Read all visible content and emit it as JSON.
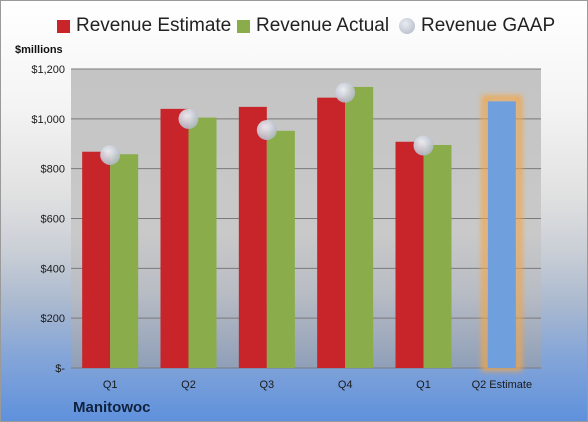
{
  "legend": {
    "estimate": "Revenue Estimate",
    "actual": "Revenue Actual",
    "gaap": "Revenue GAAP"
  },
  "company": "Manitowoc",
  "colors": {
    "estimate": "#c8252a",
    "actual": "#8aac4a",
    "gaap": "#b3b8c6",
    "projection": "#6f9fdc",
    "projection_glow": "#f2a64a"
  },
  "chart_data": {
    "type": "bar",
    "ylabel": "$millions",
    "ylim": [
      0,
      1200
    ],
    "yticks": [
      "$-",
      "$200",
      "$400",
      "$600",
      "$800",
      "$1,000",
      "$1,200"
    ],
    "ytick_values": [
      0,
      200,
      400,
      600,
      800,
      1000,
      1200
    ],
    "categories": [
      "Q1",
      "Q2",
      "Q3",
      "Q4",
      "Q1",
      "Q2 Estimate"
    ],
    "series": [
      {
        "name": "Revenue Estimate",
        "values": [
          868,
          1040,
          1048,
          1085,
          908,
          null
        ]
      },
      {
        "name": "Revenue Actual",
        "values": [
          858,
          1005,
          952,
          1128,
          895,
          null
        ]
      },
      {
        "name": "Revenue GAAP",
        "values": [
          855,
          1000,
          955,
          1105,
          893,
          null
        ]
      }
    ],
    "projection": {
      "category": "Q2 Estimate",
      "value": 1070
    },
    "grid": true,
    "legend_position": "top"
  }
}
